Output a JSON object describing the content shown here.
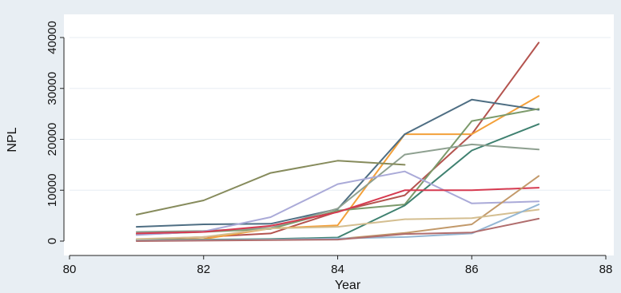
{
  "chart_data": {
    "type": "line",
    "xlabel": "Year",
    "ylabel": "NPL",
    "xlim": [
      80,
      88
    ],
    "ylim": [
      0,
      40000
    ],
    "xticks": [
      80,
      82,
      84,
      86,
      88
    ],
    "yticks": [
      0,
      10000,
      20000,
      30000,
      40000
    ],
    "grid": "horizontal",
    "legend": "none",
    "colors": {
      "background": "#e8eef3",
      "plot_area": "#ffffff",
      "gridline": "#e7eef3"
    },
    "x": [
      81,
      82,
      83,
      84,
      85,
      86,
      87
    ],
    "series": [
      {
        "color": "#b4544f",
        "values": [
          300,
          800,
          1500,
          5800,
          9000,
          21000,
          39000
        ]
      },
      {
        "color": "#f3a03a",
        "values": [
          200,
          400,
          2500,
          3100,
          21000,
          21000,
          28500
        ]
      },
      {
        "color": "#4e6e83",
        "values": [
          2800,
          3300,
          3400,
          6300,
          21000,
          27800,
          25800
        ]
      },
      {
        "color": "#7c9a6b",
        "values": [
          1300,
          1800,
          2400,
          6000,
          7200,
          23600,
          26000
        ]
      },
      {
        "color": "#3f8170",
        "values": [
          200,
          300,
          400,
          700,
          7000,
          17800,
          23000
        ]
      },
      {
        "color": "#8ea090",
        "values": [
          1800,
          2000,
          2600,
          6400,
          17000,
          19000,
          18000
        ]
      },
      {
        "color": "#868b5c",
        "values": [
          5200,
          8000,
          13400,
          15800,
          15000,
          null,
          null
        ]
      },
      {
        "color": "#aaaad8",
        "values": [
          1200,
          1900,
          4700,
          11200,
          13700,
          7400,
          7800
        ]
      },
      {
        "color": "#d63a50",
        "values": [
          1500,
          1800,
          3000,
          5700,
          10000,
          10000,
          10500
        ]
      },
      {
        "color": "#c2996a",
        "values": [
          100,
          200,
          300,
          400,
          1600,
          3300,
          12800
        ]
      },
      {
        "color": "#d4be90",
        "values": [
          400,
          800,
          2500,
          2800,
          4300,
          4500,
          6200
        ]
      },
      {
        "color": "#95b7d4",
        "values": [
          100,
          200,
          300,
          500,
          800,
          1500,
          7200
        ]
      },
      {
        "color": "#b06d6d",
        "values": [
          0,
          100,
          200,
          300,
          1400,
          1700,
          4400
        ]
      }
    ]
  }
}
